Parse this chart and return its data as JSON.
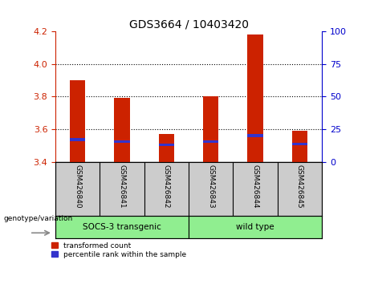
{
  "title": "GDS3664 / 10403420",
  "samples": [
    "GSM426840",
    "GSM426841",
    "GSM426842",
    "GSM426843",
    "GSM426844",
    "GSM426845"
  ],
  "red_values": [
    3.9,
    3.79,
    3.57,
    3.8,
    4.18,
    3.59
  ],
  "blue_values": [
    3.535,
    3.525,
    3.505,
    3.525,
    3.56,
    3.51
  ],
  "baseline": 3.4,
  "ylim_left": [
    3.4,
    4.2
  ],
  "ylim_right": [
    0,
    100
  ],
  "yticks_left": [
    3.4,
    3.6,
    3.8,
    4.0,
    4.2
  ],
  "yticks_right": [
    0,
    25,
    50,
    75,
    100
  ],
  "bar_width": 0.35,
  "red_color": "#CC2200",
  "blue_color": "#3333CC",
  "left_axis_color": "#CC2200",
  "right_axis_color": "#0000CC",
  "label_area_color": "#CCCCCC",
  "group_area_color": "#90EE90",
  "legend_red_label": "transformed count",
  "legend_blue_label": "percentile rank within the sample",
  "genotype_label": "genotype/variation",
  "group1_label": "SOCS-3 transgenic",
  "group2_label": "wild type",
  "grid_dotted_at": [
    3.6,
    3.8,
    4.0
  ]
}
